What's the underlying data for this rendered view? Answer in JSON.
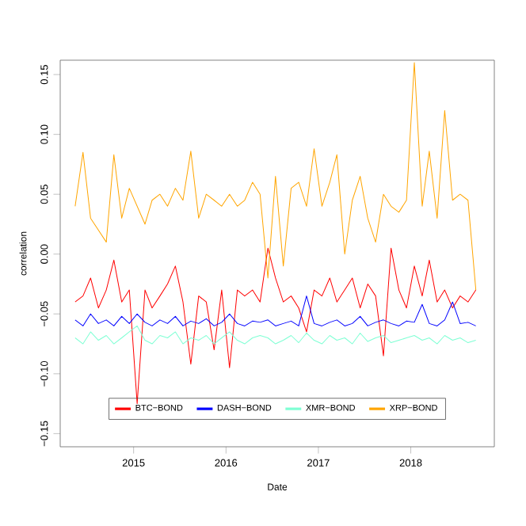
{
  "chart_data": {
    "type": "line",
    "xlabel": "Date",
    "ylabel": "correlation",
    "x": [
      "2014-05-15",
      "2014-06-15",
      "2014-07-15",
      "2014-08-15",
      "2014-09-15",
      "2014-10-15",
      "2014-11-15",
      "2014-12-15",
      "2015-01-15",
      "2015-02-15",
      "2015-03-15",
      "2015-04-15",
      "2015-05-15",
      "2015-06-15",
      "2015-07-15",
      "2015-08-15",
      "2015-09-15",
      "2015-10-15",
      "2015-11-15",
      "2015-12-15",
      "2016-01-15",
      "2016-02-15",
      "2016-03-15",
      "2016-04-15",
      "2016-05-15",
      "2016-06-15",
      "2016-07-15",
      "2016-08-15",
      "2016-09-15",
      "2016-10-15",
      "2016-11-15",
      "2016-12-15",
      "2017-01-15",
      "2017-02-15",
      "2017-03-15",
      "2017-04-15",
      "2017-05-15",
      "2017-06-15",
      "2017-07-15",
      "2017-08-15",
      "2017-09-15",
      "2017-10-15",
      "2017-11-15",
      "2017-12-15",
      "2018-01-15",
      "2018-02-15",
      "2018-03-15",
      "2018-04-15",
      "2018-05-15",
      "2018-06-15",
      "2018-07-15",
      "2018-08-15",
      "2018-09-15"
    ],
    "series": [
      {
        "name": "BTC−BOND",
        "color": "#ff0000",
        "values": [
          -0.04,
          -0.035,
          -0.02,
          -0.045,
          -0.03,
          -0.005,
          -0.04,
          -0.03,
          -0.125,
          -0.03,
          -0.045,
          -0.035,
          -0.025,
          -0.01,
          -0.04,
          -0.092,
          -0.035,
          -0.04,
          -0.08,
          -0.03,
          -0.095,
          -0.03,
          -0.035,
          -0.03,
          -0.04,
          0.005,
          -0.02,
          -0.04,
          -0.035,
          -0.045,
          -0.065,
          -0.03,
          -0.035,
          -0.02,
          -0.04,
          -0.03,
          -0.02,
          -0.045,
          -0.025,
          -0.035,
          -0.085,
          0.005,
          -0.03,
          -0.045,
          -0.01,
          -0.035,
          -0.005,
          -0.04,
          -0.03,
          -0.045,
          -0.035,
          -0.04,
          -0.03
        ]
      },
      {
        "name": "DASH−BOND",
        "color": "#0000ff",
        "values": [
          -0.055,
          -0.06,
          -0.05,
          -0.058,
          -0.055,
          -0.06,
          -0.052,
          -0.058,
          -0.05,
          -0.057,
          -0.06,
          -0.055,
          -0.058,
          -0.052,
          -0.06,
          -0.056,
          -0.058,
          -0.054,
          -0.06,
          -0.057,
          -0.05,
          -0.058,
          -0.06,
          -0.056,
          -0.057,
          -0.055,
          -0.06,
          -0.058,
          -0.056,
          -0.06,
          -0.035,
          -0.058,
          -0.06,
          -0.057,
          -0.055,
          -0.06,
          -0.058,
          -0.052,
          -0.06,
          -0.057,
          -0.055,
          -0.058,
          -0.06,
          -0.056,
          -0.057,
          -0.042,
          -0.058,
          -0.06,
          -0.055,
          -0.04,
          -0.058,
          -0.057,
          -0.06
        ]
      },
      {
        "name": "XMR−BOND",
        "color": "#7fffd4",
        "values": [
          -0.07,
          -0.075,
          -0.065,
          -0.072,
          -0.068,
          -0.075,
          -0.07,
          -0.065,
          -0.06,
          -0.072,
          -0.075,
          -0.068,
          -0.07,
          -0.065,
          -0.075,
          -0.07,
          -0.072,
          -0.068,
          -0.075,
          -0.07,
          -0.065,
          -0.072,
          -0.075,
          -0.07,
          -0.068,
          -0.07,
          -0.075,
          -0.072,
          -0.068,
          -0.074,
          -0.066,
          -0.072,
          -0.075,
          -0.068,
          -0.072,
          -0.07,
          -0.075,
          -0.066,
          -0.073,
          -0.07,
          -0.068,
          -0.074,
          -0.072,
          -0.07,
          -0.068,
          -0.072,
          -0.07,
          -0.075,
          -0.068,
          -0.072,
          -0.07,
          -0.074,
          -0.072
        ]
      },
      {
        "name": "XRP−BOND",
        "color": "#ffa500",
        "values": [
          0.04,
          0.085,
          0.03,
          0.02,
          0.01,
          0.083,
          0.03,
          0.055,
          0.04,
          0.025,
          0.045,
          0.05,
          0.04,
          0.055,
          0.045,
          0.086,
          0.03,
          0.05,
          0.045,
          0.04,
          0.05,
          0.04,
          0.045,
          0.06,
          0.05,
          -0.02,
          0.065,
          -0.01,
          0.055,
          0.06,
          0.04,
          0.088,
          0.04,
          0.06,
          0.083,
          0.0,
          0.045,
          0.065,
          0.03,
          0.01,
          0.05,
          0.04,
          0.035,
          0.045,
          0.16,
          0.04,
          0.086,
          0.03,
          0.12,
          0.045,
          0.05,
          0.045,
          -0.03
        ]
      }
    ],
    "xlim": [
      "2014-03-17",
      "2018-11-27"
    ],
    "xticks": [
      "2015",
      "2016",
      "2017",
      "2018"
    ],
    "ylim": [
      -0.161,
      0.162
    ],
    "yticks": [
      {
        "value": -0.15,
        "label": "−0.15"
      },
      {
        "value": -0.1,
        "label": "−0.10"
      },
      {
        "value": -0.05,
        "label": "−0.05"
      },
      {
        "value": 0.0,
        "label": "0.00"
      },
      {
        "value": 0.05,
        "label": "0.05"
      },
      {
        "value": 0.1,
        "label": "0.10"
      },
      {
        "value": 0.15,
        "label": "0.15"
      }
    ],
    "grid": false,
    "legend": "bottom",
    "marker": "none",
    "line_style": "solid"
  }
}
